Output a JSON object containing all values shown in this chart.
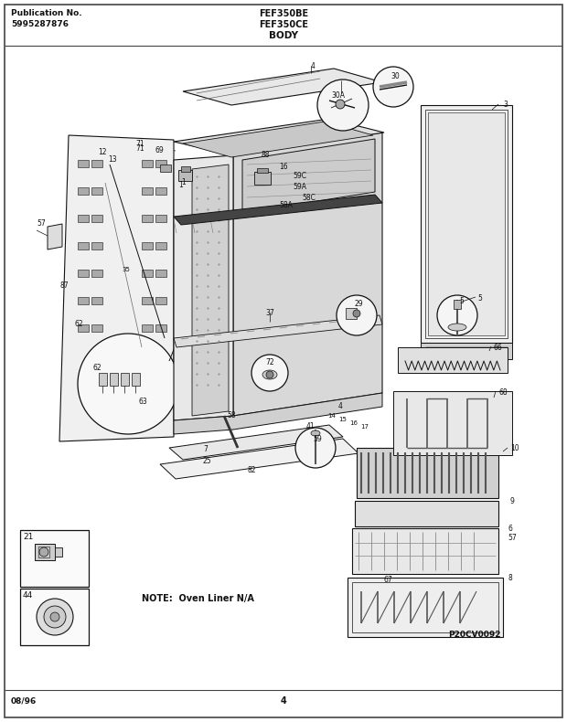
{
  "title_left_line1": "Publication No.",
  "title_left_line2": "5995287876",
  "title_right_line1": "FEF350BE",
  "title_right_line2": "FEF350CE",
  "title_right_line3": "BODY",
  "footer_left": "08/96",
  "footer_center": "4",
  "note_text": "NOTE:  Oven Liner N/A",
  "part_id": "P20CV0092",
  "bg_color": "#ffffff",
  "fg_color": "#111111",
  "gray1": "#cccccc",
  "gray2": "#aaaaaa",
  "gray3": "#888888",
  "gray4": "#555555",
  "gray5": "#e8e8e8",
  "gray6": "#d0d0d0"
}
